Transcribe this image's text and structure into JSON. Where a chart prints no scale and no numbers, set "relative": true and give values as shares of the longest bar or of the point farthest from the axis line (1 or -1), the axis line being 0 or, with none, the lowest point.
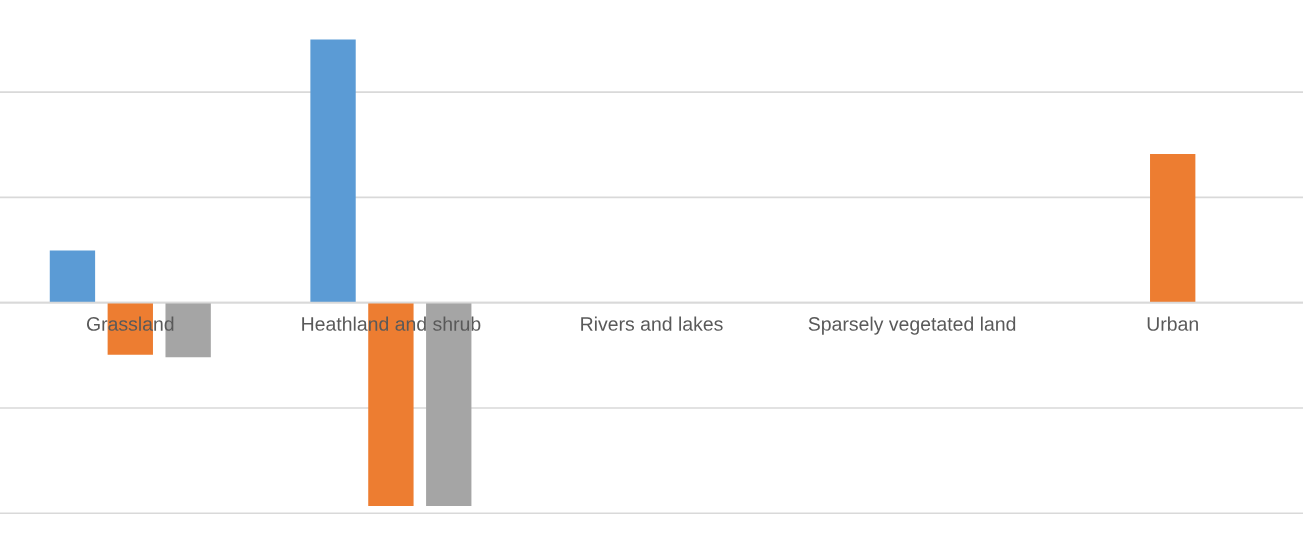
{
  "chart_data": {
    "type": "bar",
    "relative": true,
    "grid": "y",
    "legend": false,
    "categories": [
      "Grassland",
      "Heathland and shrub",
      "Rivers and lakes",
      "Sparsely vegetated land",
      "Urban"
    ],
    "series": [
      {
        "color": "#5b9bd5",
        "values": [
          0.198,
          1,
          null,
          null,
          null
        ]
      },
      {
        "color": "#ed7d31",
        "values": [
          -0.198,
          -0.772,
          null,
          null,
          0.565
        ]
      },
      {
        "color": "#a5a5a5",
        "values": [
          -0.207,
          -0.772,
          null,
          null,
          null
        ]
      }
    ]
  }
}
